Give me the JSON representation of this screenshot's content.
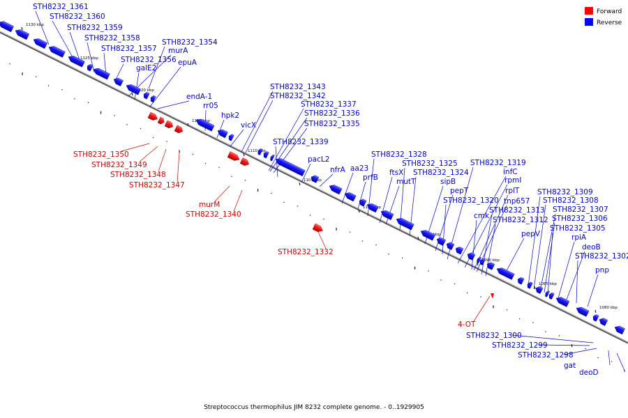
{
  "caption": "Streptococcus thermophilus JIM 8232 complete genome. - 0..1929905",
  "legend": [
    {
      "label": "Forward",
      "color": "#ff0000"
    },
    {
      "label": "Reverse",
      "color": "#0000ff"
    }
  ],
  "colors": {
    "forward": "#ff0000",
    "reverse": "#0000ff",
    "backbone": "#888888"
  },
  "kbp_ticks": [
    "1130 kbp",
    "1125 kbp",
    "1120 kbp",
    "1115 kbp",
    "1110 kbp",
    "1105 kbp",
    "1100 kbp",
    "1095 kbp",
    "1090 kbp",
    "1085 kbp",
    "1080 kbp"
  ],
  "reverse_labels": [
    "STH8232_1361",
    "STH8232_1360",
    "STH8232_1359",
    "STH8232_1358",
    "STH8232_1357",
    "STH8232_1356",
    "STH8232_1354",
    "murA",
    "galE2",
    "epuA",
    "endA-1",
    "rr05",
    "hpk2",
    "vicX",
    "STH8232_1343",
    "STH8232_1342",
    "STH8232_1337",
    "STH8232_1336",
    "STH8232_1335",
    "STH8232_1339",
    "pacL2",
    "nfrA",
    "aa23",
    "prfB",
    "STH8232_1328",
    "ftsX",
    "mutT",
    "STH8232_1325",
    "STH8232_1324",
    "sipB",
    "pepT",
    "STH8232_1320",
    "STH8232_1319",
    "infC",
    "rpmI",
    "rplT",
    "tnp657",
    "cmk",
    "STH8232_1313",
    "STH8232_1312",
    "pepV",
    "STH8232_1309",
    "STH8232_1308",
    "STH8232_1307",
    "STH8232_1306",
    "STH8232_1305",
    "rpiA",
    "deoB",
    "STH8232_1302",
    "pnp",
    "STH8232_1300",
    "STH8232_1299",
    "STH8232_1298",
    "gat",
    "deoD"
  ],
  "forward_labels": [
    "STH8232_1350",
    "STH8232_1349",
    "STH8232_1348",
    "STH8232_1347",
    "murM",
    "STH8232_1340",
    "STH8232_1332",
    "4-OT"
  ]
}
